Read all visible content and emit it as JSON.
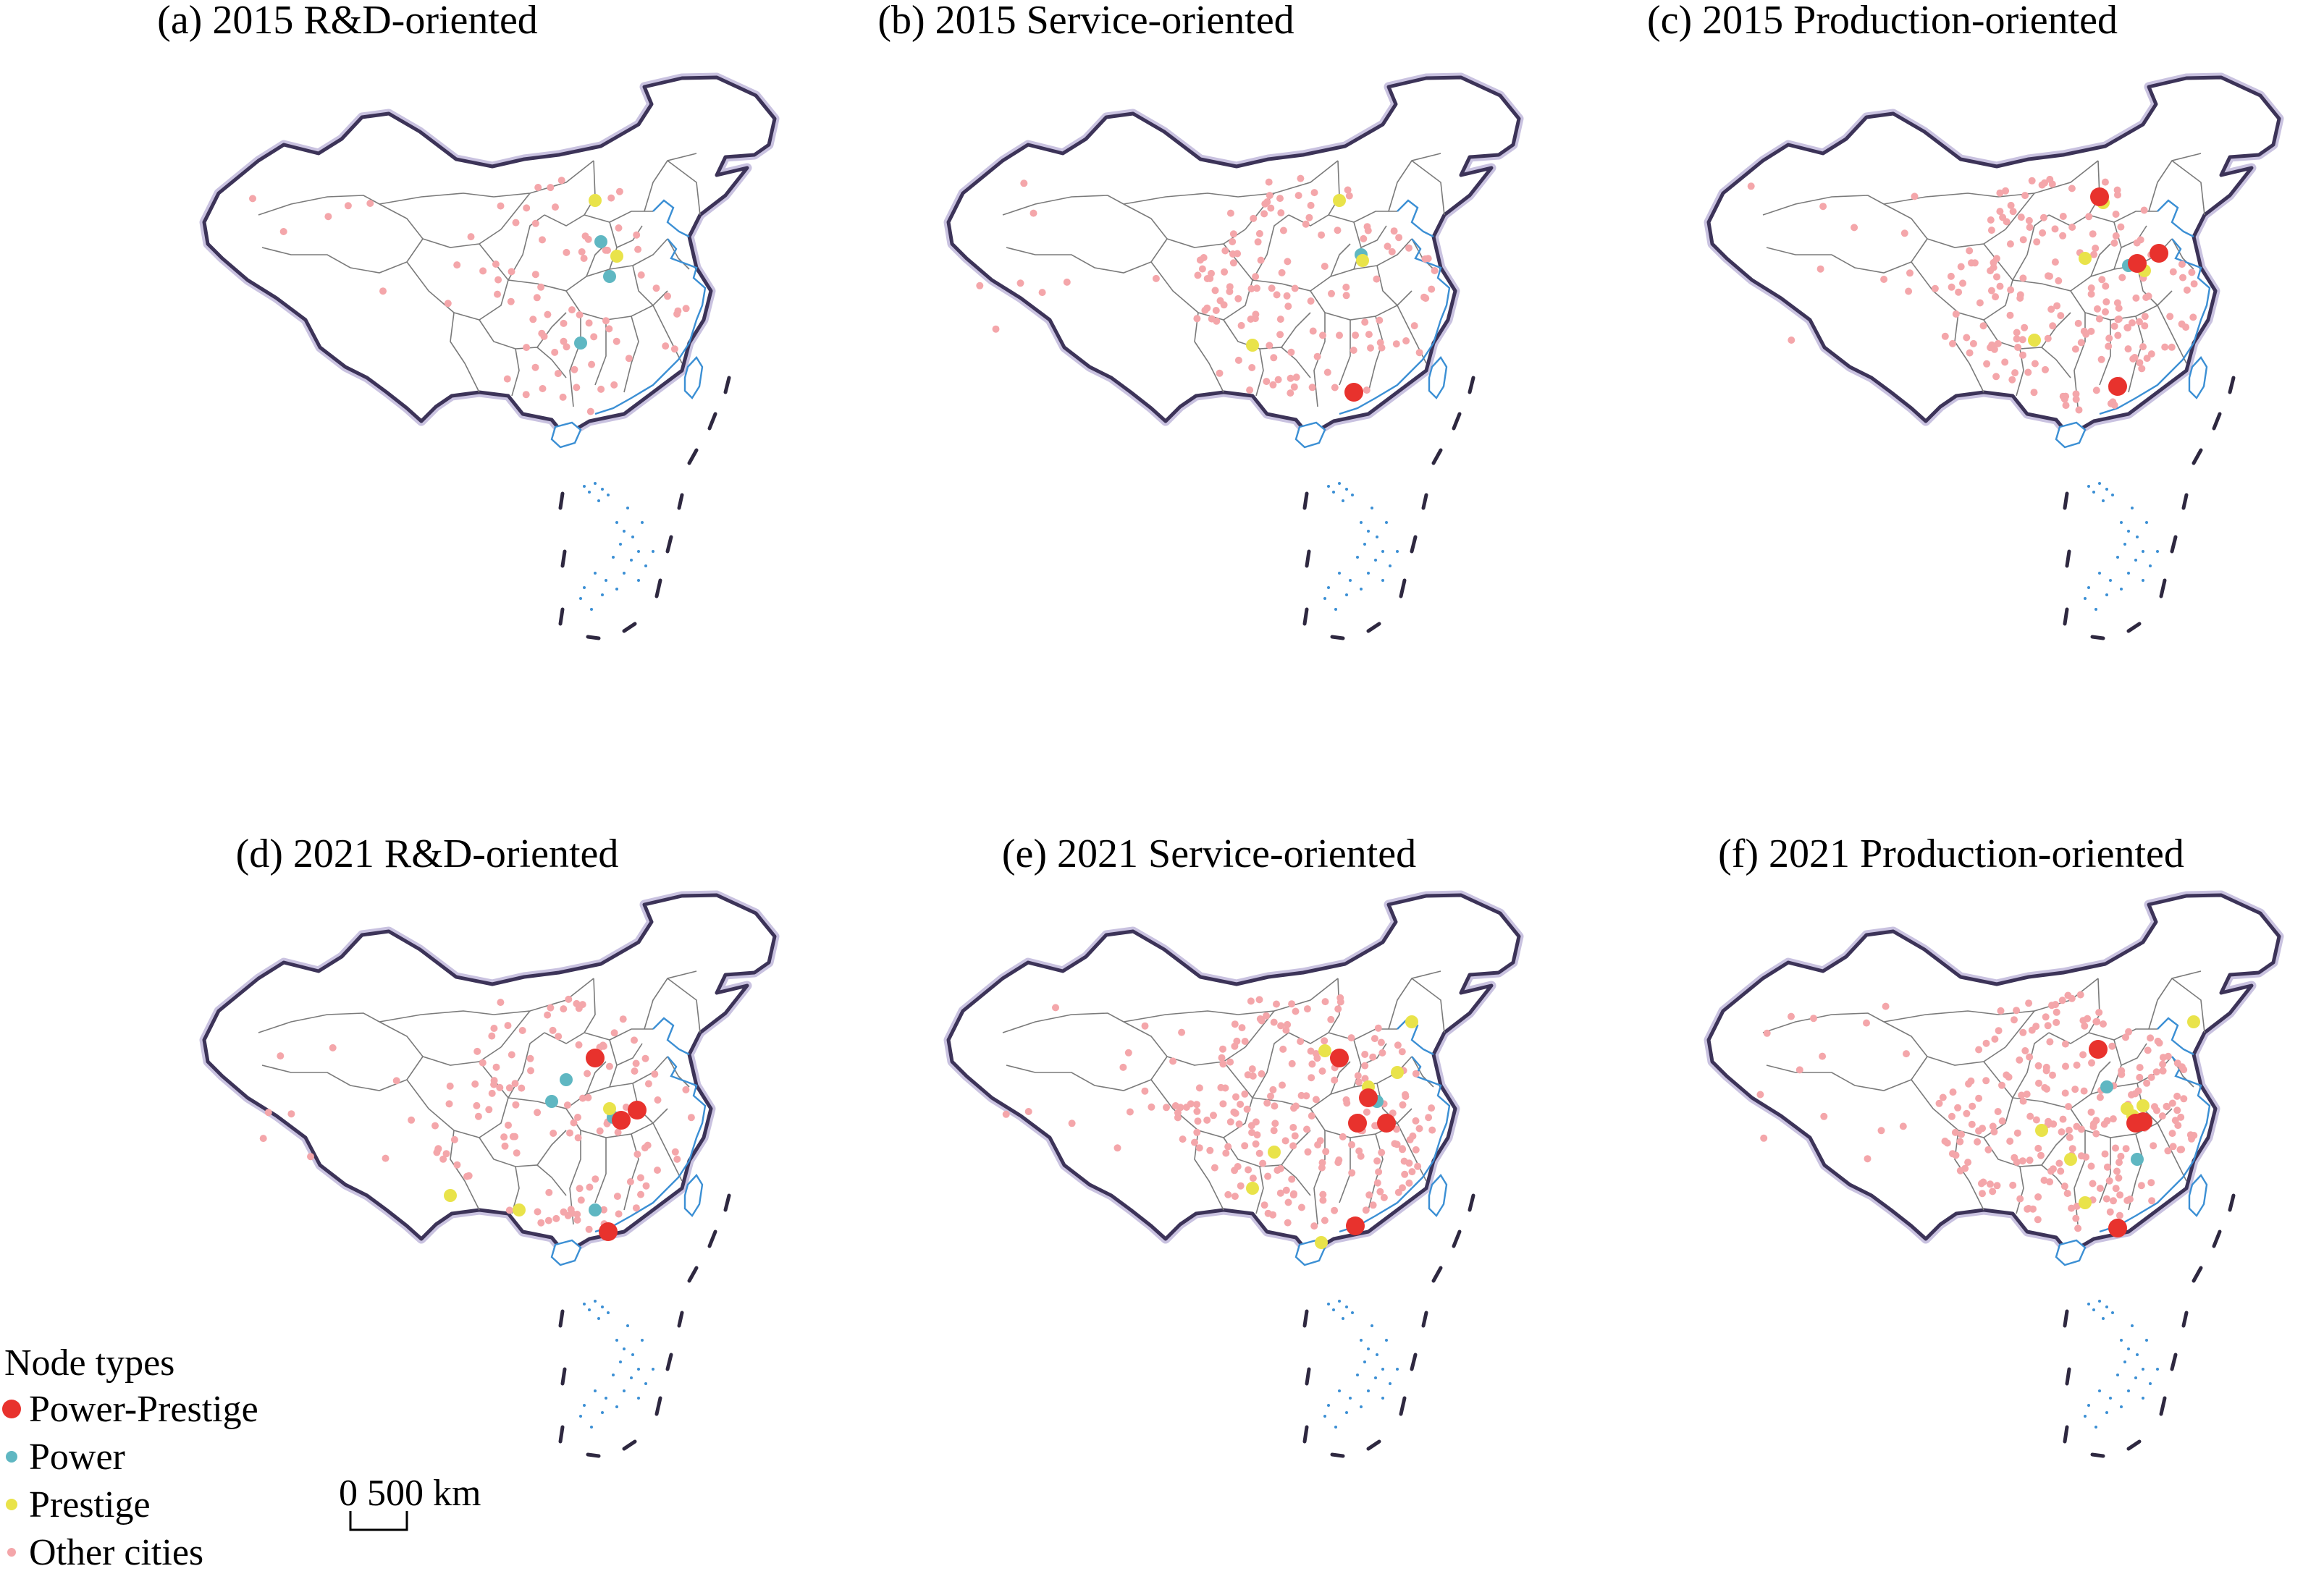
{
  "panels": [
    {
      "title": "(a) 2015 R&D-oriented"
    },
    {
      "title": "(b) 2015 Service-oriented"
    },
    {
      "title": "(c) 2015 Production-oriented"
    },
    {
      "title": "(d) 2021 R&D-oriented"
    },
    {
      "title": "(e) 2021 Service-oriented"
    },
    {
      "title": "(f) 2021 Production-oriented"
    }
  ],
  "legend": {
    "title": "Node types",
    "items": [
      {
        "label": "Power-Prestige",
        "color": "#e8322d",
        "icon": "large-red-dot"
      },
      {
        "label": "Power",
        "color": "#5fb7c2",
        "icon": "teal-dot"
      },
      {
        "label": "Prestige",
        "color": "#e9e34a",
        "icon": "yellow-dot"
      },
      {
        "label": "Other cities",
        "color": "#f4a6aa",
        "icon": "small-pink-dot"
      }
    ]
  },
  "scale_bar": {
    "label": "0 500 km"
  },
  "colors": {
    "power_prestige": "#e8322d",
    "power": "#5fb7c2",
    "prestige": "#e9e34a",
    "other": "#f4a6aa",
    "border": "#3c3358",
    "coast": "#3b8fd4",
    "province": "#7a7a7a"
  }
}
